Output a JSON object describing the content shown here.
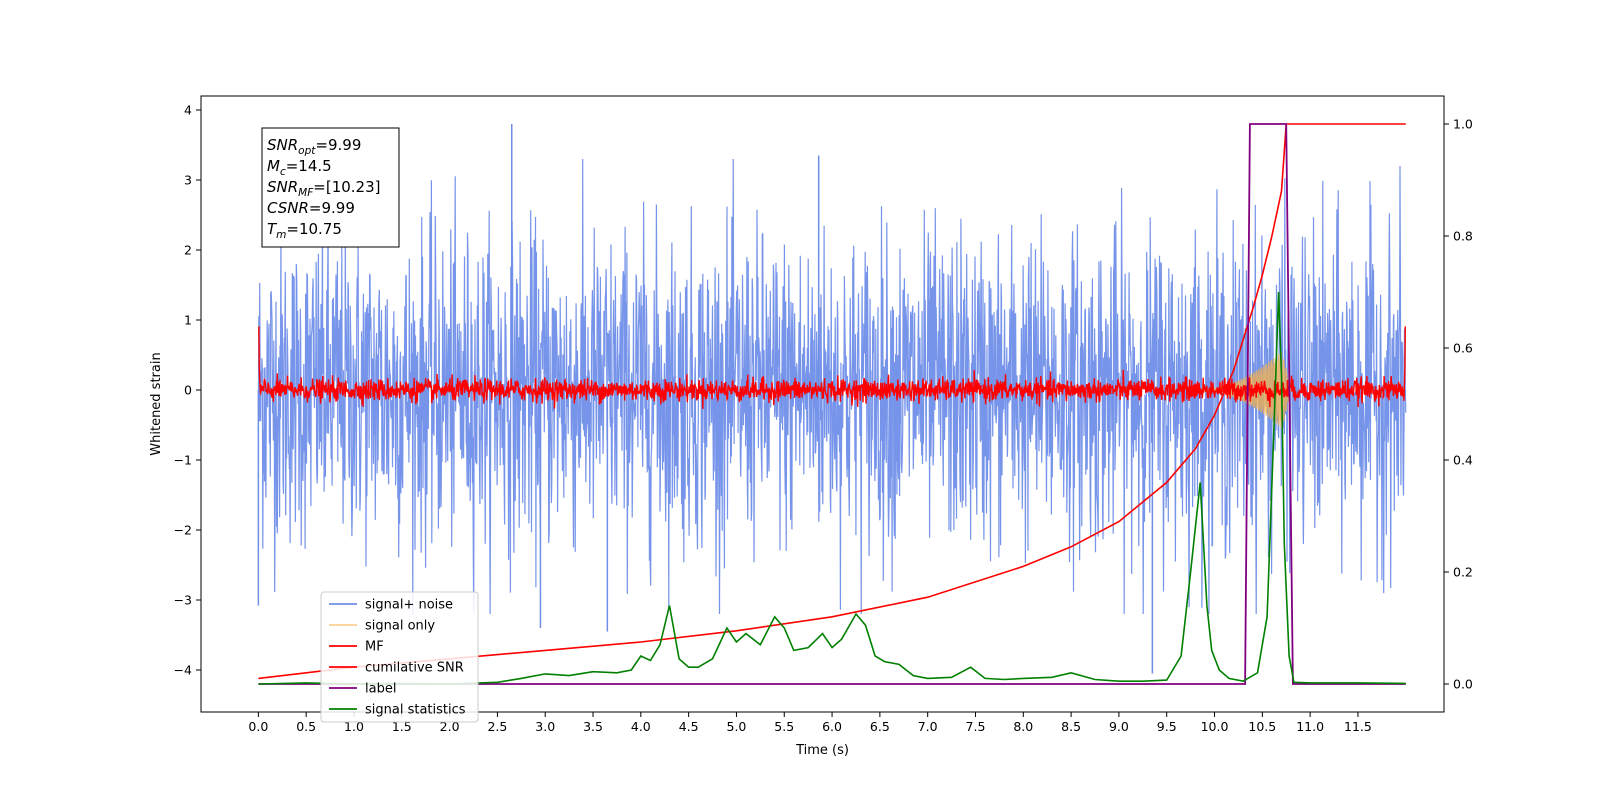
{
  "chart_data": {
    "type": "line",
    "xlabel": "Time (s)",
    "ylabel": "Whitened strain",
    "xlim": [
      -0.6,
      12.4
    ],
    "ylim": [
      -4.6,
      4.2
    ],
    "y2lim": [
      -0.05,
      1.05
    ],
    "x_ticks": [
      0.0,
      0.5,
      1.0,
      1.5,
      2.0,
      2.5,
      3.0,
      3.5,
      4.0,
      4.5,
      5.0,
      5.5,
      6.0,
      6.5,
      7.0,
      7.5,
      8.0,
      8.5,
      9.0,
      9.5,
      10.0,
      10.5,
      11.0,
      11.5
    ],
    "x_tick_labels": [
      "0.0",
      "0.5",
      "1.0",
      "1.5",
      "2.0",
      "2.5",
      "3.0",
      "3.5",
      "4.0",
      "4.5",
      "5.0",
      "5.5",
      "6.0",
      "6.5",
      "7.0",
      "7.5",
      "8.0",
      "8.5",
      "9.0",
      "9.5",
      "10.0",
      "10.5",
      "11.0",
      "11.5"
    ],
    "y_ticks": [
      -4,
      -3,
      -2,
      -1,
      0,
      1,
      2,
      3,
      4
    ],
    "y_tick_labels": [
      "−4",
      "−3",
      "−2",
      "−1",
      "0",
      "1",
      "2",
      "3",
      "4"
    ],
    "y2_ticks": [
      0.0,
      0.2,
      0.4,
      0.6,
      0.8,
      1.0
    ],
    "y2_tick_labels": [
      "0.0",
      "0.2",
      "0.4",
      "0.6",
      "0.8",
      "1.0"
    ],
    "grid": false,
    "legend_position": "lower-left",
    "series": [
      {
        "name": "signal+ noise",
        "axis": "left",
        "color": "#6f8ee8",
        "x_range": [
          0.0,
          12.0
        ],
        "typical_abs": 1.1,
        "extremes": [
          [
            2.65,
            3.8
          ],
          [
            5.86,
            3.35
          ],
          [
            9.35,
            -4.05
          ],
          [
            3.65,
            -3.45
          ],
          [
            0.0,
            -3.08
          ],
          [
            2.95,
            -3.4
          ]
        ]
      },
      {
        "name": "signal only",
        "axis": "left",
        "color": "#f5b14a",
        "x_range": [
          9.8,
          10.8
        ],
        "peak_amplitude": 0.55,
        "peak_time": 10.7
      },
      {
        "name": "MF",
        "axis": "left",
        "color": "#ff0000",
        "x_range": [
          0.0,
          12.0
        ],
        "typical_abs": 0.08,
        "max_abs": 0.3
      },
      {
        "name": "cumilative SNR",
        "axis": "right",
        "color": "#ff0000",
        "x": [
          0.0,
          1.0,
          2.0,
          3.0,
          4.0,
          5.0,
          6.0,
          7.0,
          8.0,
          8.5,
          9.0,
          9.5,
          9.8,
          10.0,
          10.2,
          10.4,
          10.5,
          10.6,
          10.7,
          10.75,
          12.0
        ],
        "values": [
          0.01,
          0.03,
          0.045,
          0.06,
          0.075,
          0.095,
          0.12,
          0.155,
          0.21,
          0.245,
          0.29,
          0.36,
          0.42,
          0.48,
          0.56,
          0.67,
          0.73,
          0.8,
          0.88,
          1.0,
          1.0
        ]
      },
      {
        "name": "label",
        "axis": "right",
        "color": "#800080",
        "x": [
          0.0,
          10.32,
          10.37,
          10.75,
          10.82,
          12.0
        ],
        "values": [
          0.0,
          0.0,
          1.0,
          1.0,
          0.0,
          0.0
        ]
      },
      {
        "name": "signal statistics",
        "axis": "right",
        "color": "#008000",
        "x": [
          0.0,
          0.5,
          1.0,
          1.5,
          2.0,
          2.5,
          2.75,
          3.0,
          3.25,
          3.5,
          3.75,
          3.9,
          4.0,
          4.1,
          4.2,
          4.3,
          4.4,
          4.5,
          4.6,
          4.75,
          4.9,
          5.0,
          5.1,
          5.25,
          5.4,
          5.5,
          5.6,
          5.75,
          5.9,
          6.0,
          6.1,
          6.25,
          6.35,
          6.45,
          6.55,
          6.7,
          6.85,
          7.0,
          7.25,
          7.45,
          7.6,
          7.8,
          8.0,
          8.3,
          8.5,
          8.75,
          9.0,
          9.25,
          9.5,
          9.65,
          9.75,
          9.85,
          9.92,
          9.97,
          10.05,
          10.15,
          10.3,
          10.45,
          10.55,
          10.62,
          10.67,
          10.7,
          10.73,
          10.78,
          10.83,
          11.0,
          11.5,
          12.0
        ],
        "values": [
          0.0,
          0.002,
          0.0,
          0.001,
          0.0,
          0.003,
          0.01,
          0.018,
          0.015,
          0.022,
          0.02,
          0.025,
          0.05,
          0.042,
          0.07,
          0.14,
          0.045,
          0.03,
          0.03,
          0.045,
          0.1,
          0.075,
          0.09,
          0.07,
          0.12,
          0.1,
          0.06,
          0.065,
          0.09,
          0.065,
          0.08,
          0.125,
          0.105,
          0.05,
          0.04,
          0.035,
          0.015,
          0.01,
          0.012,
          0.03,
          0.01,
          0.008,
          0.01,
          0.012,
          0.02,
          0.008,
          0.005,
          0.005,
          0.007,
          0.05,
          0.2,
          0.36,
          0.14,
          0.06,
          0.025,
          0.01,
          0.005,
          0.02,
          0.12,
          0.45,
          0.7,
          0.55,
          0.25,
          0.05,
          0.003,
          0.002,
          0.002,
          0.001
        ]
      }
    ],
    "annotation": {
      "lines": [
        {
          "main": "SNR",
          "sub": "opt",
          "rest": "=9.99"
        },
        {
          "main": "M",
          "sub": "c",
          "rest": "=14.5"
        },
        {
          "main": "SNR",
          "sub": "MF",
          "rest": "=[10.23]"
        },
        {
          "main": "CSNR",
          "sub": "",
          "rest": "=9.99"
        },
        {
          "main": "T",
          "sub": "m",
          "rest": "=10.75"
        }
      ]
    }
  }
}
